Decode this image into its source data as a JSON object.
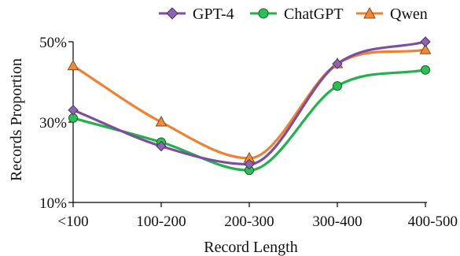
{
  "chart_data": {
    "type": "line",
    "categories": [
      "<100",
      "100-200",
      "200-300",
      "300-400",
      "400-500"
    ],
    "xlabel": "Record Length",
    "ylabel": "Records Proportion",
    "ylim": [
      10,
      50
    ],
    "yticks": [
      10,
      30,
      50
    ],
    "ytick_labels": [
      "10%",
      "30%",
      "50%"
    ],
    "grid": false,
    "legend_position": "top",
    "smooth": true,
    "series": [
      {
        "name": "GPT-4",
        "marker": "diamond",
        "color": "#7B4F9D",
        "values": [
          33,
          24,
          19.5,
          44.5,
          50
        ]
      },
      {
        "name": "ChatGPT",
        "marker": "circle",
        "color": "#22B14C",
        "values": [
          31,
          25,
          18,
          39,
          43
        ]
      },
      {
        "name": "Qwen",
        "marker": "triangle",
        "color": "#EE8232",
        "values": [
          44,
          30,
          21,
          44.5,
          48
        ]
      }
    ]
  }
}
